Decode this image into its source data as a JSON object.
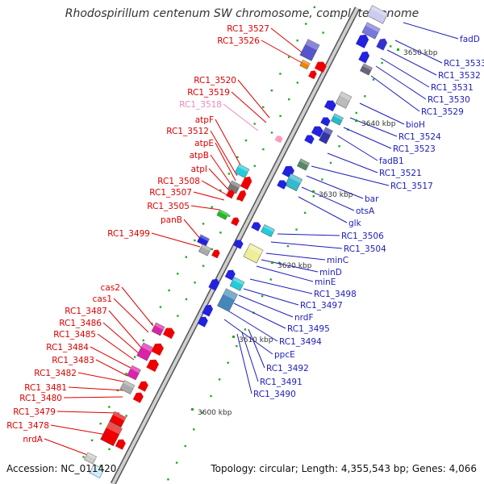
{
  "title": "Rhodospirillum centenum SW chromosome, complete genome",
  "accession": "Accession: NC_011420",
  "topology": "Topology: circular; Length: 4,355,543 bp; Genes: 4,066",
  "colors": {
    "left_label": "#dd0000",
    "right_label": "#1c1cbb",
    "faded_label": "#ee88bb",
    "axis": "#999999"
  },
  "kbp_ticks": [
    "3600 kbp",
    "3610 kbp",
    "3620 kbp",
    "3630 kbp",
    "3640 kbp",
    "3650 kbp"
  ],
  "left_labels": [
    "RC1_3527",
    "RC1_3526",
    "RC1_3520",
    "RC1_3519",
    "RC1_3518",
    "atpF",
    "RC1_3512",
    "atpE",
    "atpB",
    "atpI",
    "RC1_3508",
    "RC1_3507",
    "RC1_3505",
    "panB",
    "RC1_3499",
    "cas2",
    "cas1",
    "RC1_3487",
    "RC1_3486",
    "RC1_3485",
    "RC1_3484",
    "RC1_3483",
    "RC1_3482",
    "RC1_3481",
    "RC1_3480",
    "RC1_3479",
    "RC1_3478",
    "nrdA"
  ],
  "right_labels": [
    "fadD",
    "RC1_3533",
    "RC1_3532",
    "RC1_3531",
    "RC1_3530",
    "RC1_3529",
    "bioH",
    "RC1_3524",
    "RC1_3523",
    "fadB1",
    "RC1_3521",
    "RC1_3517",
    "bar",
    "otsA",
    "glk",
    "RC1_3506",
    "RC1_3504",
    "minC",
    "minD",
    "minE",
    "RC1_3498",
    "RC1_3497",
    "nrdF",
    "RC1_3495",
    "RC1_3494",
    "ppcE",
    "RC1_3492",
    "RC1_3491",
    "RC1_3490"
  ]
}
